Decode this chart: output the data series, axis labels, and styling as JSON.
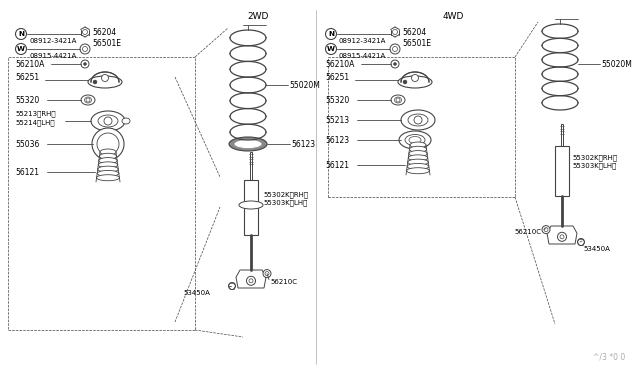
{
  "bg_color": "#ffffff",
  "line_color": "#444444",
  "title_2wd": "2WD",
  "title_4wd": "4WD",
  "watermark": "^/3 *0 0",
  "fig_w": 6.4,
  "fig_h": 3.72,
  "dpi": 100
}
